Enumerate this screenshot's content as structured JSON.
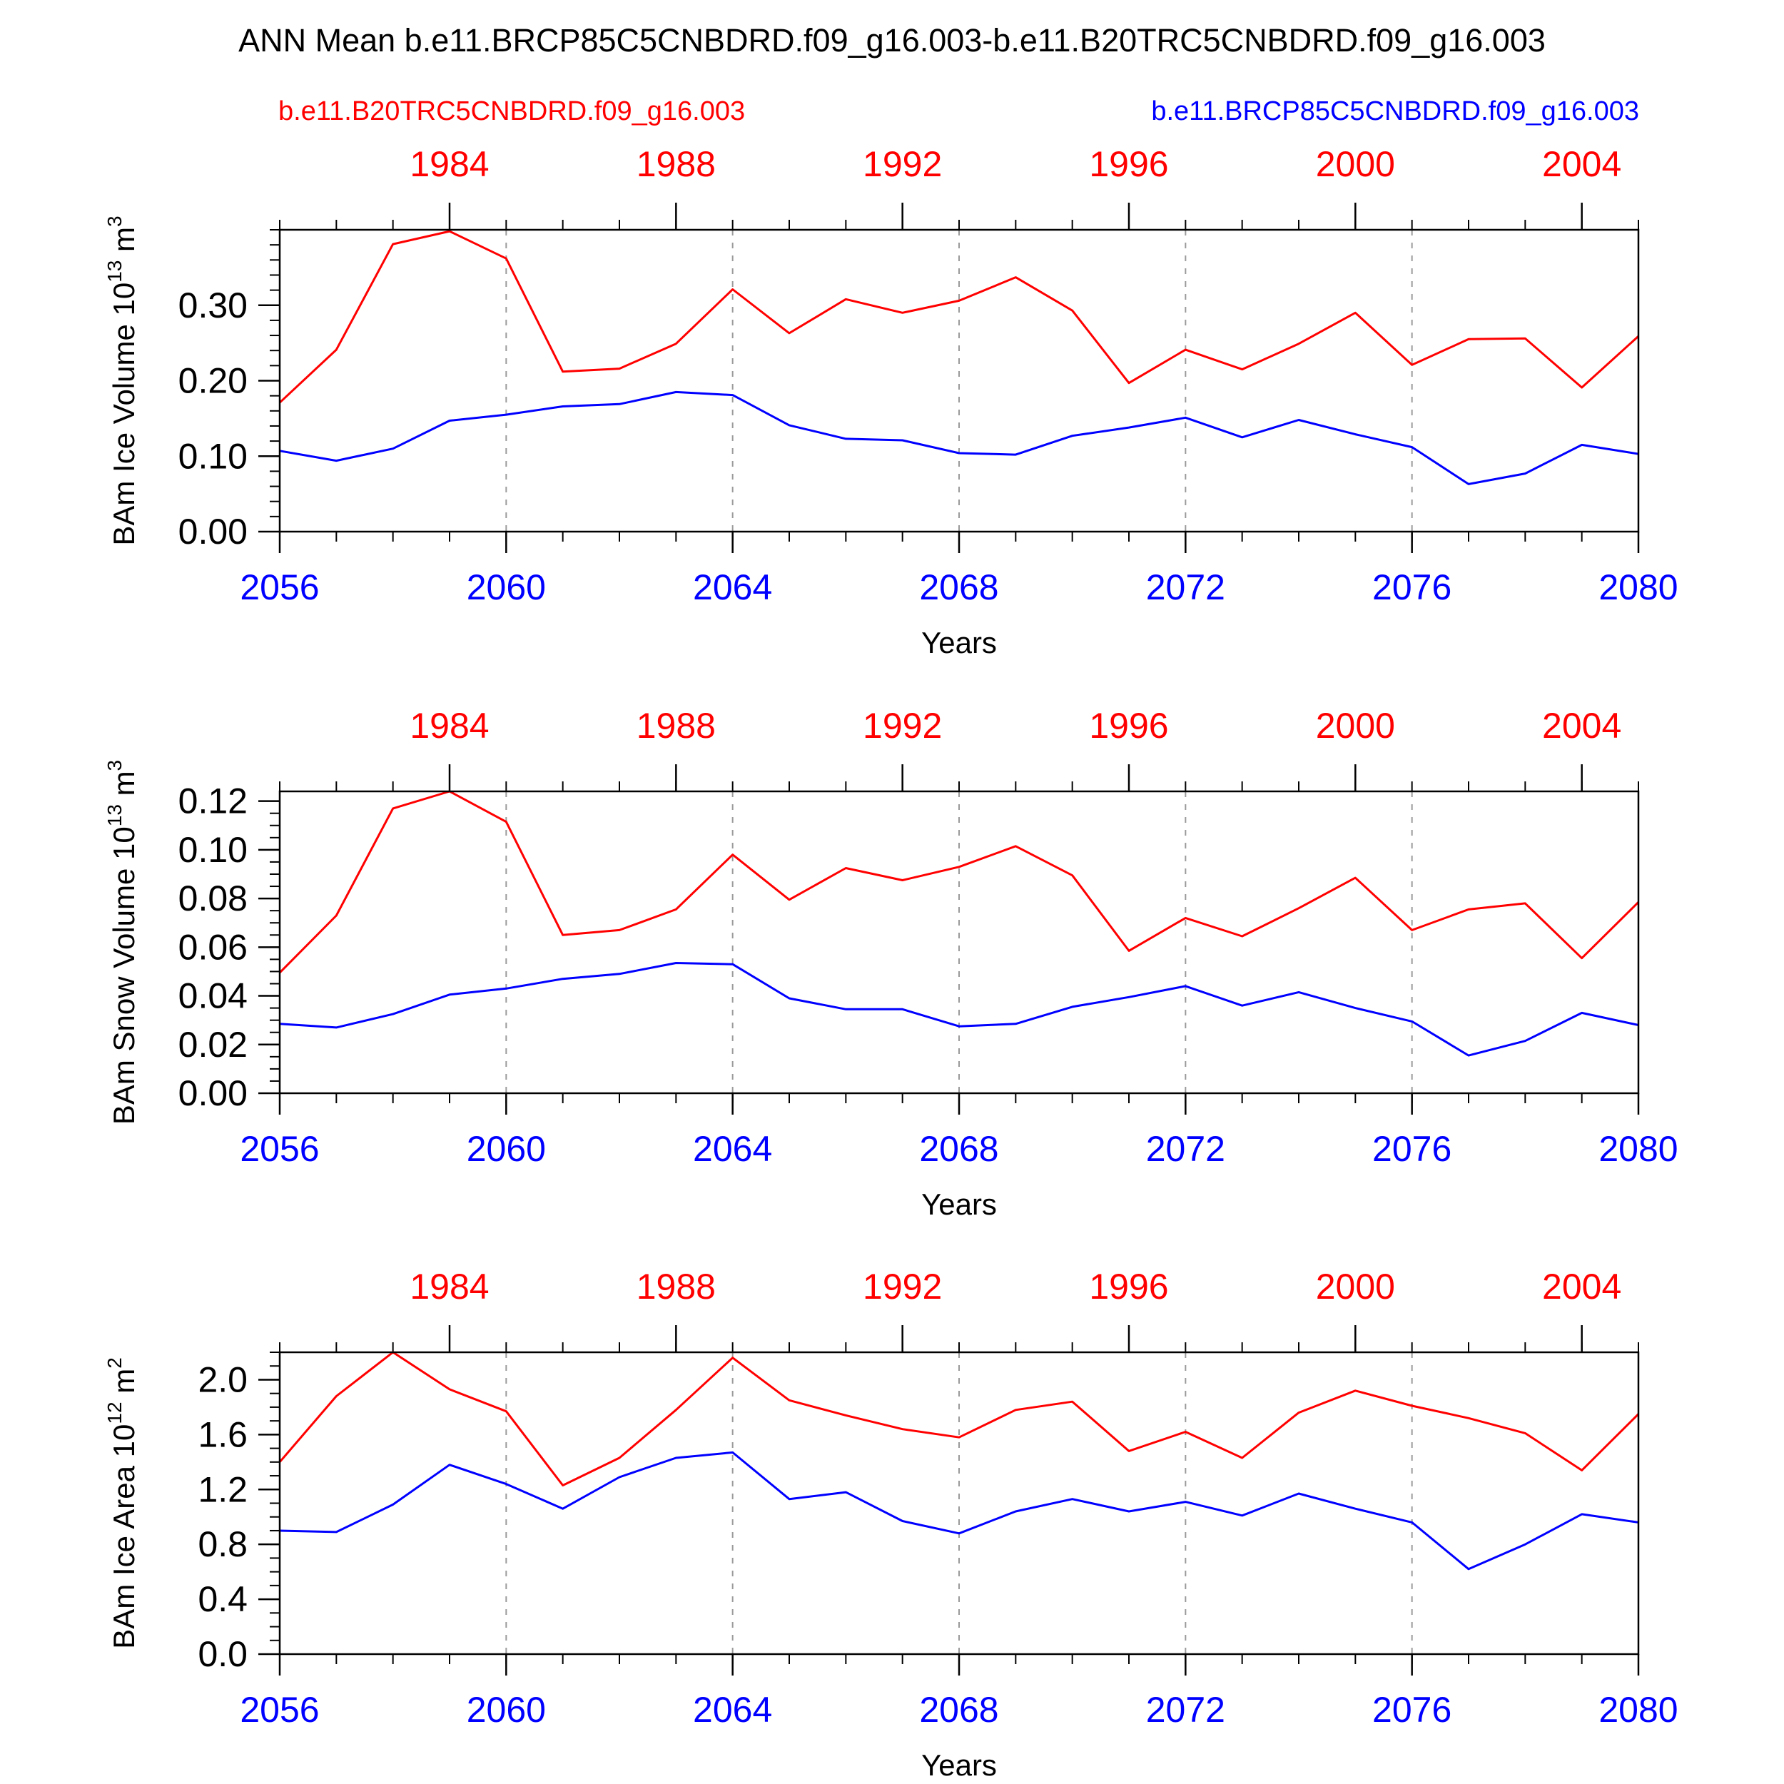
{
  "figure": {
    "title": "ANN Mean b.e11.BRCP85C5CNBDRD.f09_g16.003-b.e11.B20TRC5CNBDRD.f09_g16.003",
    "legend_red": "b.e11.B20TRC5CNBDRD.f09_g16.003",
    "legend_blue": "b.e11.BRCP85C5CNBDRD.f09_g16.003",
    "colors": {
      "red_series": "#ff0000",
      "blue_series": "#0000ff",
      "axis": "#000000",
      "grid": "#9a9a9a"
    }
  },
  "chart_data": [
    {
      "type": "line",
      "xlabel": "Years",
      "ylabel": "BAm Ice Volume 10",
      "ylabel_exp": "13",
      "ylabel_unit": " m",
      "ylabel_unit_exp": "3",
      "ylim": [
        0,
        0.4
      ],
      "yticks": [
        0.0,
        0.1,
        0.2,
        0.3
      ],
      "yticklabels": [
        "0.00",
        "0.10",
        "0.20",
        "0.30"
      ],
      "yminor_step": 0.02,
      "xlim": [
        2056,
        2080
      ],
      "xticks": [
        2056,
        2060,
        2064,
        2068,
        2072,
        2076,
        2080
      ],
      "xticklabels": [
        "2056",
        "2060",
        "2064",
        "2068",
        "2072",
        "2076",
        "2080"
      ],
      "top_xlim": [
        1981,
        2005
      ],
      "top_xticks": [
        1984,
        1988,
        1992,
        1996,
        2000,
        2004
      ],
      "top_xticklabels": [
        "1984",
        "1988",
        "1992",
        "1996",
        "2000",
        "2004"
      ],
      "grid": "vertical dashed at major x ticks",
      "x": [
        2056,
        2057,
        2058,
        2059,
        2060,
        2061,
        2062,
        2063,
        2064,
        2065,
        2066,
        2067,
        2068,
        2069,
        2070,
        2071,
        2072,
        2073,
        2074,
        2075,
        2076,
        2077,
        2078,
        2079,
        2080
      ],
      "series": [
        {
          "color": "#ff0000",
          "values": [
            0.171,
            0.241,
            0.381,
            0.398,
            0.362,
            0.212,
            0.216,
            0.249,
            0.321,
            0.263,
            0.308,
            0.29,
            0.306,
            0.337,
            0.293,
            0.197,
            0.241,
            0.215,
            0.249,
            0.29,
            0.221,
            0.255,
            0.256,
            0.191,
            0.259
          ]
        },
        {
          "color": "#0000ff",
          "values": [
            0.107,
            0.094,
            0.11,
            0.147,
            0.155,
            0.166,
            0.169,
            0.185,
            0.181,
            0.141,
            0.123,
            0.121,
            0.104,
            0.102,
            0.127,
            0.138,
            0.151,
            0.125,
            0.148,
            0.129,
            0.112,
            0.063,
            0.077,
            0.115,
            0.103
          ]
        }
      ]
    },
    {
      "type": "line",
      "xlabel": "Years",
      "ylabel": "BAm Snow Volume 10",
      "ylabel_exp": "13",
      "ylabel_unit": " m",
      "ylabel_unit_exp": "3",
      "ylim": [
        0,
        0.124
      ],
      "yticks": [
        0.0,
        0.02,
        0.04,
        0.06,
        0.08,
        0.1,
        0.12
      ],
      "yticklabels": [
        "0.00",
        "0.02",
        "0.04",
        "0.06",
        "0.08",
        "0.10",
        "0.12"
      ],
      "yminor_step": 0.005,
      "xlim": [
        2056,
        2080
      ],
      "xticks": [
        2056,
        2060,
        2064,
        2068,
        2072,
        2076,
        2080
      ],
      "xticklabels": [
        "2056",
        "2060",
        "2064",
        "2068",
        "2072",
        "2076",
        "2080"
      ],
      "top_xlim": [
        1981,
        2005
      ],
      "top_xticks": [
        1984,
        1988,
        1992,
        1996,
        2000,
        2004
      ],
      "top_xticklabels": [
        "1984",
        "1988",
        "1992",
        "1996",
        "2000",
        "2004"
      ],
      "grid": "vertical dashed at major x ticks",
      "x": [
        2056,
        2057,
        2058,
        2059,
        2060,
        2061,
        2062,
        2063,
        2064,
        2065,
        2066,
        2067,
        2068,
        2069,
        2070,
        2071,
        2072,
        2073,
        2074,
        2075,
        2076,
        2077,
        2078,
        2079,
        2080
      ],
      "series": [
        {
          "color": "#ff0000",
          "values": [
            0.0495,
            0.073,
            0.117,
            0.124,
            0.1115,
            0.065,
            0.067,
            0.0755,
            0.098,
            0.0795,
            0.0925,
            0.0875,
            0.093,
            0.1015,
            0.0895,
            0.0585,
            0.072,
            0.0645,
            0.076,
            0.0885,
            0.067,
            0.0755,
            0.078,
            0.0555,
            0.0785
          ]
        },
        {
          "color": "#0000ff",
          "values": [
            0.0285,
            0.027,
            0.0325,
            0.0405,
            0.043,
            0.047,
            0.049,
            0.0535,
            0.053,
            0.039,
            0.0345,
            0.0345,
            0.0275,
            0.0285,
            0.0355,
            0.0395,
            0.044,
            0.036,
            0.0415,
            0.035,
            0.0295,
            0.0155,
            0.0215,
            0.033,
            0.028
          ]
        }
      ]
    },
    {
      "type": "line",
      "xlabel": "Years",
      "ylabel": "BAm Ice Area 10",
      "ylabel_exp": "12",
      "ylabel_unit": " m",
      "ylabel_unit_exp": "2",
      "ylim": [
        0,
        2.2
      ],
      "yticks": [
        0.0,
        0.4,
        0.8,
        1.2,
        1.6,
        2.0
      ],
      "yticklabels": [
        "0.0",
        "0.4",
        "0.8",
        "1.2",
        "1.6",
        "2.0"
      ],
      "yminor_step": 0.1,
      "xlim": [
        2056,
        2080
      ],
      "xticks": [
        2056,
        2060,
        2064,
        2068,
        2072,
        2076,
        2080
      ],
      "xticklabels": [
        "2056",
        "2060",
        "2064",
        "2068",
        "2072",
        "2076",
        "2080"
      ],
      "top_xlim": [
        1981,
        2005
      ],
      "top_xticks": [
        1984,
        1988,
        1992,
        1996,
        2000,
        2004
      ],
      "top_xticklabels": [
        "1984",
        "1988",
        "1992",
        "1996",
        "2000",
        "2004"
      ],
      "grid": "vertical dashed at major x ticks",
      "x": [
        2056,
        2057,
        2058,
        2059,
        2060,
        2061,
        2062,
        2063,
        2064,
        2065,
        2066,
        2067,
        2068,
        2069,
        2070,
        2071,
        2072,
        2073,
        2074,
        2075,
        2076,
        2077,
        2078,
        2079,
        2080
      ],
      "series": [
        {
          "color": "#ff0000",
          "values": [
            1.4,
            1.88,
            2.2,
            1.93,
            1.77,
            1.23,
            1.43,
            1.78,
            2.16,
            1.85,
            1.74,
            1.64,
            1.58,
            1.78,
            1.84,
            1.48,
            1.62,
            1.43,
            1.76,
            1.92,
            1.81,
            1.72,
            1.61,
            1.34,
            1.75
          ]
        },
        {
          "color": "#0000ff",
          "values": [
            0.9,
            0.89,
            1.09,
            1.38,
            1.24,
            1.06,
            1.29,
            1.43,
            1.47,
            1.13,
            1.18,
            0.97,
            0.88,
            1.04,
            1.13,
            1.04,
            1.11,
            1.01,
            1.17,
            1.06,
            0.96,
            0.62,
            0.8,
            1.02,
            0.96
          ]
        }
      ]
    }
  ]
}
